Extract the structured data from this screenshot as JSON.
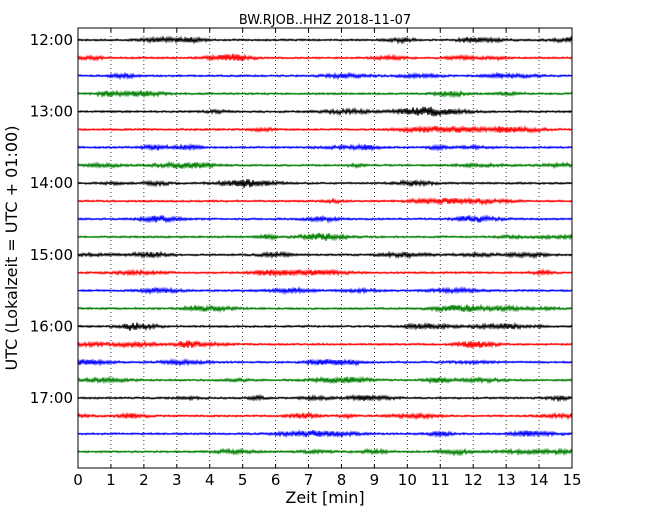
{
  "chart_data": {
    "type": "line",
    "title": "BW.RJOB..HHZ 2018-11-07",
    "xlabel": "Zeit  [min]",
    "ylabel": "UTC (Lokalzeit = UTC + 01:00)",
    "xlim": [
      0,
      15
    ],
    "x_ticks": [
      "0",
      "1",
      "2",
      "3",
      "4",
      "5",
      "6",
      "7",
      "8",
      "9",
      "10",
      "11",
      "12",
      "13",
      "14",
      "15"
    ],
    "y_ticks": [
      "12:00",
      "13:00",
      "14:00",
      "15:00",
      "16:00",
      "17:00"
    ],
    "grid": "vertical dotted",
    "trace_interval_minutes": 15,
    "trace_start": "12:00",
    "trace_colors": [
      "#000000",
      "#ff0000",
      "#0000ff",
      "#007f00"
    ],
    "series": [
      {
        "start": "12:00"
      },
      {
        "start": "12:15"
      },
      {
        "start": "12:30"
      },
      {
        "start": "12:45"
      },
      {
        "start": "13:00"
      },
      {
        "start": "13:15"
      },
      {
        "start": "13:30"
      },
      {
        "start": "13:45"
      },
      {
        "start": "14:00"
      },
      {
        "start": "14:15"
      },
      {
        "start": "14:30"
      },
      {
        "start": "14:45"
      },
      {
        "start": "15:00"
      },
      {
        "start": "15:15"
      },
      {
        "start": "15:30"
      },
      {
        "start": "15:45"
      },
      {
        "start": "16:00"
      },
      {
        "start": "16:15"
      },
      {
        "start": "16:30"
      },
      {
        "start": "16:45"
      },
      {
        "start": "17:00"
      },
      {
        "start": "17:15"
      },
      {
        "start": "17:30"
      },
      {
        "start": "17:45"
      }
    ]
  }
}
